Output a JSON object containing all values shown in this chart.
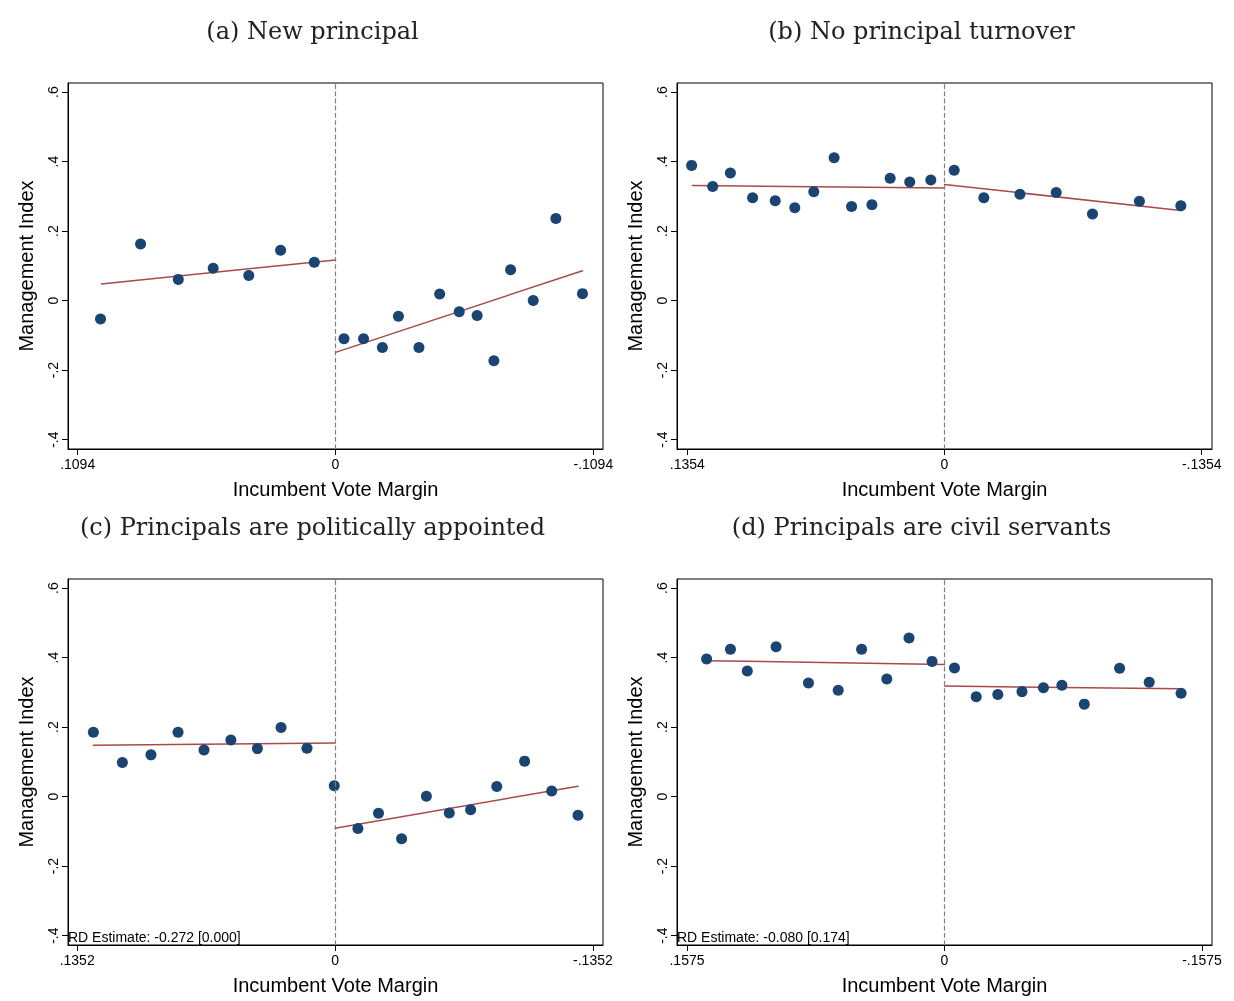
{
  "chart_data": [
    {
      "type": "scatter",
      "title": "(a) New principal",
      "xlabel": "Incumbent Vote Margin",
      "ylabel": "Management Index",
      "xlim": [
        0.1135,
        -0.1135
      ],
      "xticks": [
        {
          "value": 0.1094,
          "label": ".1094"
        },
        {
          "value": 0,
          "label": "0"
        },
        {
          "value": -0.1094,
          "label": "-.1094"
        }
      ],
      "ylim": [
        -0.427,
        0.626
      ],
      "yticks": [
        {
          "value": -0.4,
          "label": "-.4"
        },
        {
          "value": -0.2,
          "label": "-.2"
        },
        {
          "value": 0,
          "label": "0"
        },
        {
          "value": 0.2,
          "label": ".2"
        },
        {
          "value": 0.4,
          "label": ".4"
        },
        {
          "value": 0.6,
          "label": ".6"
        }
      ],
      "ref_lines": [
        {
          "axis": "x",
          "value": 0,
          "color": "#808080",
          "line_style": "dashed"
        }
      ],
      "series": [
        {
          "type": "scatter",
          "marker": "circle",
          "color": "#1a4472",
          "x": [
            0.0997,
            0.0827,
            0.0667,
            0.0519,
            0.0368,
            0.0233,
            0.009,
            -0.0036,
            -0.0119,
            -0.0199,
            -0.0267,
            -0.0354,
            -0.0442,
            -0.0525,
            -0.0601,
            -0.0672,
            -0.0743,
            -0.0839,
            -0.0935,
            -0.1048
          ],
          "values": [
            -0.053,
            0.163,
            0.061,
            0.093,
            0.072,
            0.145,
            0.11,
            -0.11,
            -0.11,
            -0.135,
            -0.045,
            -0.135,
            0.019,
            -0.032,
            -0.043,
            -0.173,
            0.089,
            0,
            0.236,
            0.02
          ]
        },
        {
          "type": "line",
          "marker": "none",
          "color": "#a84a4a",
          "x": [
            0.0993,
            0
          ],
          "values": [
            0.048,
            0.117
          ]
        },
        {
          "type": "line",
          "marker": "none",
          "color": "#a84a4a",
          "x": [
            0,
            -0.1048
          ],
          "values": [
            -0.149,
            0.086
          ]
        }
      ]
    },
    {
      "type": "scatter",
      "title": "(b) No principal turnover",
      "xlabel": "Incumbent Vote Margin",
      "ylabel": "Management Index",
      "xlim": [
        0.1408,
        -0.1408
      ],
      "xticks": [
        {
          "value": 0.1354,
          "label": ".1354"
        },
        {
          "value": 0,
          "label": "0"
        },
        {
          "value": -0.1354,
          "label": "-.1354"
        }
      ],
      "ylim": [
        -0.427,
        0.626
      ],
      "yticks": [
        {
          "value": -0.4,
          "label": "-.4"
        },
        {
          "value": -0.2,
          "label": "-.2"
        },
        {
          "value": 0,
          "label": "0"
        },
        {
          "value": 0.2,
          "label": ".2"
        },
        {
          "value": 0.4,
          "label": ".4"
        },
        {
          "value": 0.6,
          "label": ".6"
        }
      ],
      "ref_lines": [
        {
          "axis": "x",
          "value": 0,
          "color": "#808080",
          "line_style": "dashed"
        }
      ],
      "series": [
        {
          "type": "scatter",
          "marker": "circle",
          "color": "#1a4472",
          "x": [
            0.1331,
            0.122,
            0.1127,
            0.101,
            0.0891,
            0.0788,
            0.0688,
            0.0581,
            0.0489,
            0.0382,
            0.0286,
            0.0183,
            0.0072,
            -0.0051,
            -0.0207,
            -0.0397,
            -0.0588,
            -0.0779,
            -0.1026,
            -0.1244
          ],
          "values": [
            0.389,
            0.328,
            0.367,
            0.296,
            0.287,
            0.267,
            0.313,
            0.411,
            0.271,
            0.276,
            0.352,
            0.341,
            0.347,
            0.375,
            0.296,
            0.306,
            0.311,
            0.249,
            0.286,
            0.273
          ]
        },
        {
          "type": "line",
          "marker": "none",
          "color": "#a84a4a",
          "x": [
            0.1327,
            0
          ],
          "values": [
            0.331,
            0.324
          ]
        },
        {
          "type": "line",
          "marker": "none",
          "color": "#a84a4a",
          "x": [
            0,
            -0.1244
          ],
          "values": [
            0.334,
            0.259
          ]
        }
      ]
    },
    {
      "type": "scatter",
      "title": "(c) Principals are politically appointed",
      "xlabel": "Incumbent Vote Margin",
      "ylabel": "Management Index",
      "xlim": [
        0.14,
        -0.1405
      ],
      "xticks": [
        {
          "value": 0.1352,
          "label": ".1352"
        },
        {
          "value": 0,
          "label": "0"
        },
        {
          "value": -0.1352,
          "label": "-.1352"
        }
      ],
      "ylim": [
        -0.427,
        0.626
      ],
      "yticks": [
        {
          "value": -0.4,
          "label": "-.4"
        },
        {
          "value": -0.2,
          "label": "-.2"
        },
        {
          "value": 0,
          "label": "0"
        },
        {
          "value": 0.2,
          "label": ".2"
        },
        {
          "value": 0.4,
          "label": ".4"
        },
        {
          "value": 0.6,
          "label": ".6"
        }
      ],
      "ref_lines": [
        {
          "axis": "x",
          "value": 0,
          "color": "#808080",
          "line_style": "dashed"
        }
      ],
      "annotations": [
        "RD Estimate: -0.272 [0.000]"
      ],
      "series": [
        {
          "type": "scatter",
          "marker": "circle",
          "color": "#1a4472",
          "x": [
            0.1267,
            0.1115,
            0.0965,
            0.0823,
            0.0687,
            0.0546,
            0.0407,
            0.0283,
            0.0147,
            0.0004,
            -0.012,
            -0.0228,
            -0.0349,
            -0.0479,
            -0.0599,
            -0.0711,
            -0.0848,
            -0.0994,
            -0.1136,
            -0.1274
          ],
          "values": [
            0.185,
            0.098,
            0.12,
            0.185,
            0.134,
            0.163,
            0.138,
            0.199,
            0.139,
            0.031,
            -0.092,
            -0.048,
            -0.121,
            0.001,
            -0.047,
            -0.038,
            0.029,
            0.102,
            0.016,
            -0.054
          ]
        },
        {
          "type": "line",
          "marker": "none",
          "color": "#a84a4a",
          "x": [
            0.1267,
            0
          ],
          "values": [
            0.148,
            0.154
          ]
        },
        {
          "type": "line",
          "marker": "none",
          "color": "#a84a4a",
          "x": [
            0,
            -0.1274
          ],
          "values": [
            -0.091,
            0.03
          ]
        }
      ]
    },
    {
      "type": "scatter",
      "title": "(d) Principals are civil servants",
      "xlabel": "Incumbent Vote Margin",
      "ylabel": "Management Index",
      "xlim": [
        0.1636,
        -0.1636
      ],
      "xticks": [
        {
          "value": 0.1575,
          "label": ".1575"
        },
        {
          "value": 0,
          "label": "0"
        },
        {
          "value": -0.1575,
          "label": "-.1575"
        }
      ],
      "ylim": [
        -0.427,
        0.626
      ],
      "yticks": [
        {
          "value": -0.4,
          "label": "-.4"
        },
        {
          "value": -0.2,
          "label": "-.2"
        },
        {
          "value": 0,
          "label": "0"
        },
        {
          "value": 0.2,
          "label": ".2"
        },
        {
          "value": 0.4,
          "label": ".4"
        },
        {
          "value": 0.6,
          "label": ".6"
        }
      ],
      "ref_lines": [
        {
          "axis": "x",
          "value": 0,
          "color": "#808080",
          "line_style": "dashed"
        }
      ],
      "annotations": [
        "RD Estimate: -0.080 [0.174]"
      ],
      "series": [
        {
          "type": "scatter",
          "marker": "circle",
          "color": "#1a4472",
          "x": [
            0.1455,
            0.1309,
            0.1206,
            0.103,
            0.0832,
            0.065,
            0.0507,
            0.0353,
            0.0217,
            0.0076,
            -0.0061,
            -0.0194,
            -0.0326,
            -0.0474,
            -0.0605,
            -0.0718,
            -0.0855,
            -0.1071,
            -0.1252,
            -0.1447
          ],
          "values": [
            0.396,
            0.424,
            0.361,
            0.431,
            0.327,
            0.306,
            0.424,
            0.338,
            0.456,
            0.389,
            0.37,
            0.287,
            0.294,
            0.302,
            0.313,
            0.32,
            0.266,
            0.369,
            0.329,
            0.297
          ]
        },
        {
          "type": "line",
          "marker": "none",
          "color": "#a84a4a",
          "x": [
            0.1455,
            0
          ],
          "values": [
            0.391,
            0.38
          ]
        },
        {
          "type": "line",
          "marker": "none",
          "color": "#a84a4a",
          "x": [
            0,
            -0.1447
          ],
          "values": [
            0.318,
            0.31
          ]
        }
      ]
    }
  ]
}
